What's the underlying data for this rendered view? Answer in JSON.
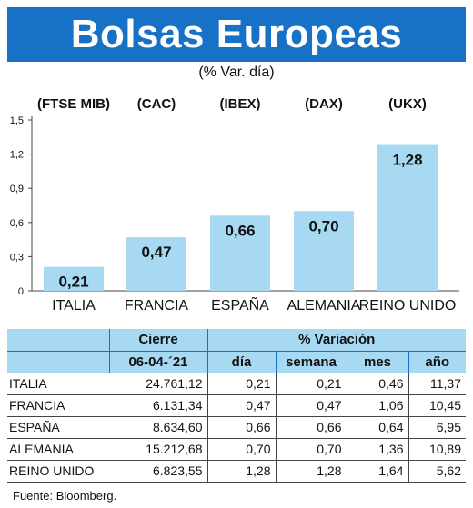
{
  "header": {
    "title": "Bolsas Europeas",
    "subtitle": "(% Var. día)"
  },
  "chart_data": {
    "type": "bar",
    "categories": [
      "ITALIA",
      "FRANCIA",
      "ESPAÑA",
      "ALEMANIA",
      "REINO UNIDO"
    ],
    "index_labels": [
      "(FTSE MIB)",
      "(CAC)",
      "(IBEX)",
      "(DAX)",
      "(UKX)"
    ],
    "values": [
      0.21,
      0.47,
      0.66,
      0.7,
      1.28
    ],
    "value_labels": [
      "0,21",
      "0,47",
      "0,66",
      "0,70",
      "1,28"
    ],
    "y_ticks": [
      0,
      0.3,
      0.6,
      0.9,
      1.2,
      1.5
    ],
    "y_tick_labels": [
      "0",
      "0,3",
      "0,6",
      "0,9",
      "1,2",
      "1,5"
    ],
    "ylim": [
      0,
      1.5
    ],
    "bar_color": "#a7daf2",
    "grid": false
  },
  "table": {
    "header_top": {
      "cierre": "Cierre",
      "variacion": "% Variación"
    },
    "header_sub": {
      "date": "06-04-´21",
      "dia": "día",
      "semana": "semana",
      "mes": "mes",
      "anio": "año"
    },
    "rows": [
      {
        "name": "ITALIA",
        "cierre": "24.761,12",
        "dia": "0,21",
        "semana": "0,21",
        "mes": "0,46",
        "anio": "11,37"
      },
      {
        "name": "FRANCIA",
        "cierre": "6.131,34",
        "dia": "0,47",
        "semana": "0,47",
        "mes": "1,06",
        "anio": "10,45"
      },
      {
        "name": "ESPAÑA",
        "cierre": "8.634,60",
        "dia": "0,66",
        "semana": "0,66",
        "mes": "0,64",
        "anio": "6,95"
      },
      {
        "name": "ALEMANIA",
        "cierre": "15.212,68",
        "dia": "0,70",
        "semana": "0,70",
        "mes": "1,36",
        "anio": "10,89"
      },
      {
        "name": "REINO UNIDO",
        "cierre": "6.823,55",
        "dia": "1,28",
        "semana": "1,28",
        "mes": "1,64",
        "anio": "5,62"
      }
    ]
  },
  "footer": {
    "source": "Fuente: Bloomberg."
  },
  "colors": {
    "title_bg": "#1771c6",
    "table_header_bg": "#a7d9f2"
  }
}
